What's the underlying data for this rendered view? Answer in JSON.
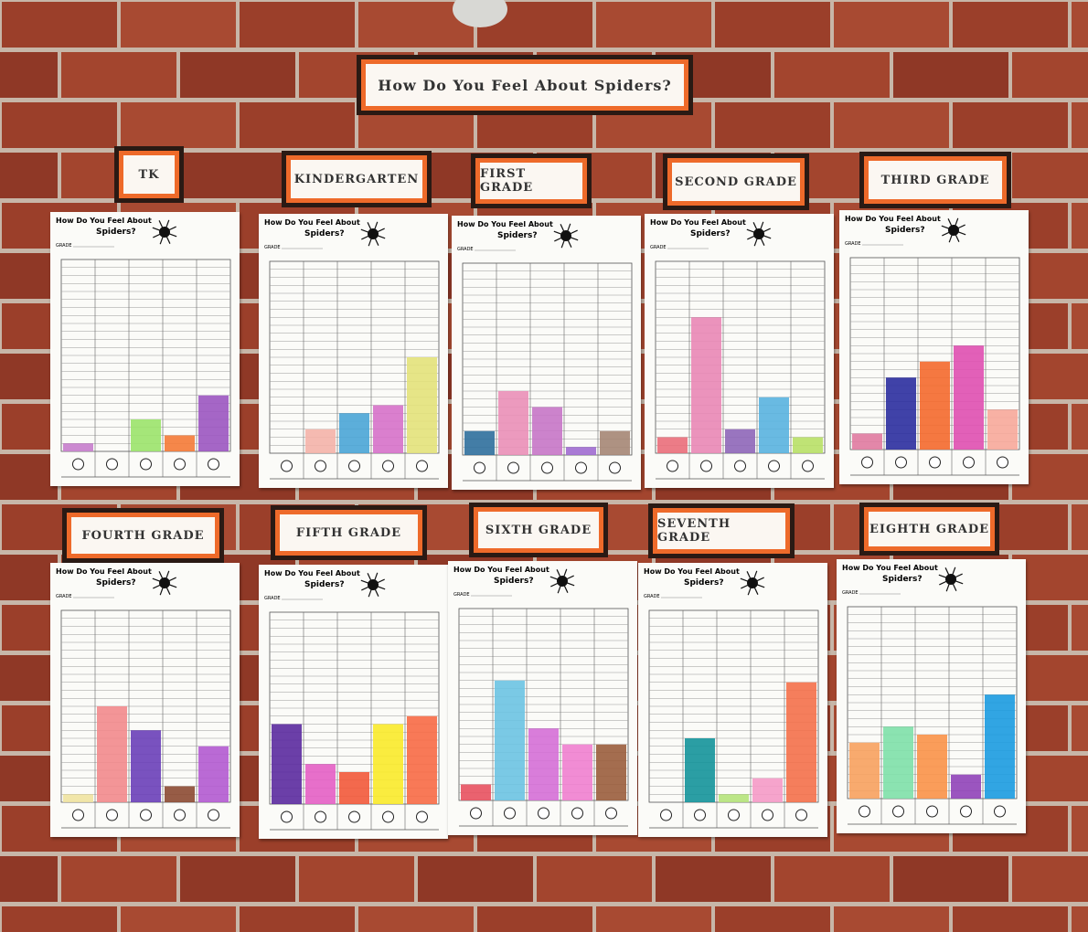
{
  "title": "How Do You Feel About Spiders?",
  "sheet": {
    "heading_line1": "How Do You Feel About",
    "heading_line2": "Spiders?",
    "grade_label": "GRADE"
  },
  "posters": [
    {
      "label": "TK",
      "bars": [
        {
          "color": "#c77dcc",
          "value": 1
        },
        {
          "color": "#cccccc",
          "value": 0
        },
        {
          "color": "#9be36a",
          "value": 4
        },
        {
          "color": "#f47a36",
          "value": 2
        },
        {
          "color": "#9b55c0",
          "value": 7
        }
      ]
    },
    {
      "label": "KINDERGARTEN",
      "bars": [
        {
          "color": "#cccccc",
          "value": 0
        },
        {
          "color": "#f4b3a8",
          "value": 3
        },
        {
          "color": "#4aa5d6",
          "value": 5
        },
        {
          "color": "#d671c9",
          "value": 6
        },
        {
          "color": "#e3e27a",
          "value": 12
        }
      ]
    },
    {
      "label": "FIRST GRADE",
      "bars": [
        {
          "color": "#2f6f9c",
          "value": 3
        },
        {
          "color": "#ea8fb7",
          "value": 8
        },
        {
          "color": "#c676c6",
          "value": 6
        },
        {
          "color": "#a06bd0",
          "value": 1
        },
        {
          "color": "#a58674",
          "value": 3
        }
      ]
    },
    {
      "label": "SECOND GRADE",
      "bars": [
        {
          "color": "#ea6e7a",
          "value": 2
        },
        {
          "color": "#e987b5",
          "value": 17
        },
        {
          "color": "#8e66b8",
          "value": 3
        },
        {
          "color": "#59b3df",
          "value": 7
        },
        {
          "color": "#b8e066",
          "value": 2
        }
      ]
    },
    {
      "label": "THIRD GRADE",
      "bars": [
        {
          "color": "#e07aa0",
          "value": 2
        },
        {
          "color": "#2b2e9e",
          "value": 9
        },
        {
          "color": "#f4692c",
          "value": 11
        },
        {
          "color": "#df4fb0",
          "value": 13
        },
        {
          "color": "#f7a99a",
          "value": 5
        }
      ]
    },
    {
      "label": "FOURTH GRADE",
      "bars": [
        {
          "color": "#f0e3a0",
          "value": 1
        },
        {
          "color": "#f28a8c",
          "value": 12
        },
        {
          "color": "#6a3fb8",
          "value": 9
        },
        {
          "color": "#8c4a32",
          "value": 2
        },
        {
          "color": "#b35ad0",
          "value": 7
        }
      ]
    },
    {
      "label": "FIFTH GRADE",
      "bars": [
        {
          "color": "#5b2a9e",
          "value": 10
        },
        {
          "color": "#e45fc4",
          "value": 5
        },
        {
          "color": "#f2593a",
          "value": 4
        },
        {
          "color": "#f9ea2a",
          "value": 10
        },
        {
          "color": "#f76a45",
          "value": 11
        }
      ]
    },
    {
      "label": "SIXTH GRADE",
      "bars": [
        {
          "color": "#e8515f",
          "value": 2
        },
        {
          "color": "#6cc3e2",
          "value": 15
        },
        {
          "color": "#d56fd6",
          "value": 9
        },
        {
          "color": "#ef7fcf",
          "value": 7
        },
        {
          "color": "#9a5d3c",
          "value": 7
        }
      ]
    },
    {
      "label": "SEVENTH GRADE",
      "bars": [
        {
          "color": "#cccccc",
          "value": 0
        },
        {
          "color": "#14939a",
          "value": 8
        },
        {
          "color": "#b5e37a",
          "value": 1
        },
        {
          "color": "#f59ac6",
          "value": 3
        },
        {
          "color": "#f4704a",
          "value": 15
        }
      ]
    },
    {
      "label": "EIGHTH GRADE",
      "bars": [
        {
          "color": "#f7a15e",
          "value": 7
        },
        {
          "color": "#7ee0a8",
          "value": 9
        },
        {
          "color": "#fa9248",
          "value": 8
        },
        {
          "color": "#9042b8",
          "value": 3
        },
        {
          "color": "#1b9be0",
          "value": 13
        }
      ]
    }
  ]
}
